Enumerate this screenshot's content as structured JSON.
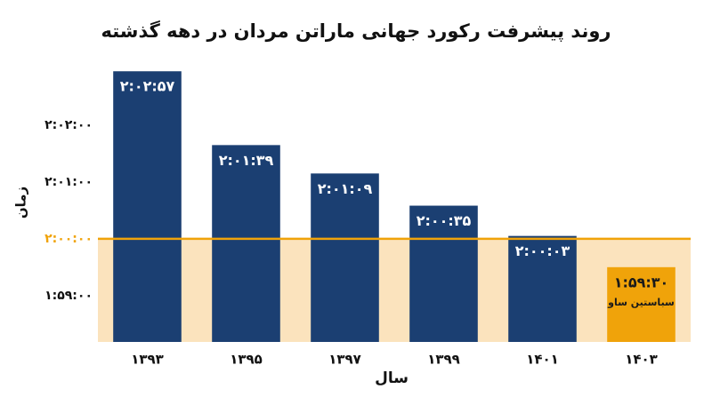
{
  "chart_data": {
    "type": "bar",
    "title": "روند پیشرفت رکورد جهانی ماراتن مردان در دهه گذشته",
    "x_label": "سال",
    "y_label": "زمان",
    "categories": [
      "۱۳۹۳",
      "۱۳۹۵",
      "۱۳۹۷",
      "۱۳۹۹",
      "۱۴۰۱",
      "۱۴۰۳"
    ],
    "values": [
      7377,
      7299,
      7269,
      7235,
      7203,
      7170
    ],
    "value_labels": [
      "۲:۰۲:۵۷",
      "۲:۰۱:۳۹",
      "۲:۰۱:۰۹",
      "۲:۰۰:۳۵",
      "۲:۰۰:۰۳",
      "۱:۵۹:۳۰"
    ],
    "value_notes": [
      null,
      null,
      null,
      null,
      null,
      "سباستین ساو"
    ],
    "colors": [
      "#1b3f72",
      "#1b3f72",
      "#1b3f72",
      "#1b3f72",
      "#1b3f72",
      "#f0a30a"
    ],
    "value_label_colors": [
      "#ffffff",
      "#ffffff",
      "#ffffff",
      "#ffffff",
      "#ffffff",
      "#1a1a1a"
    ],
    "ylim": [
      7091,
      7396
    ],
    "yticks": [
      {
        "value": 7140,
        "label": "۱:۵۹:۰۰"
      },
      {
        "value": 7200,
        "label": "۲:۰۰:۰۰"
      },
      {
        "value": 7260,
        "label": "۲:۰۱:۰۰"
      },
      {
        "value": 7320,
        "label": "۲:۰۲:۰۰"
      }
    ],
    "reference_line": {
      "value": 7200,
      "color": "#f0a30a",
      "shade_below": "#fbe3bd"
    },
    "grid": false
  }
}
